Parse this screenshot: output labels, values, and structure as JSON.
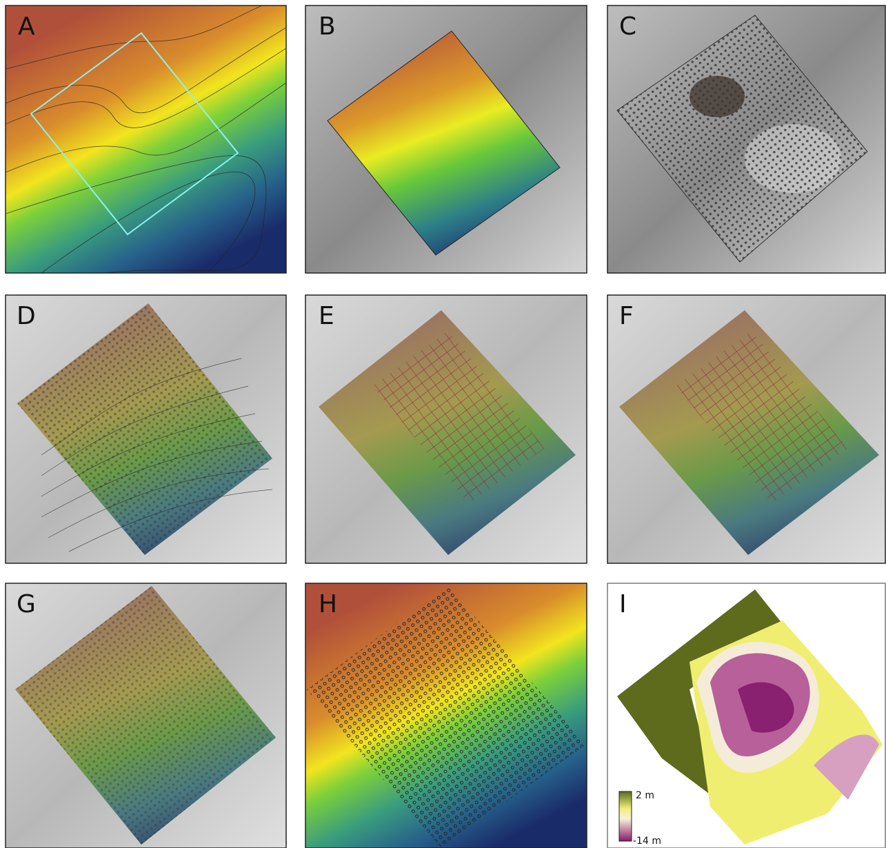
{
  "panels": [
    {
      "label": "A"
    },
    {
      "label": "B"
    },
    {
      "label": "C"
    },
    {
      "label": "D"
    },
    {
      "label": "E"
    },
    {
      "label": "F"
    },
    {
      "label": "G"
    },
    {
      "label": "H"
    },
    {
      "label": "I"
    }
  ],
  "legend": {
    "max_label": "2 m",
    "min_label": "-14 m"
  }
}
